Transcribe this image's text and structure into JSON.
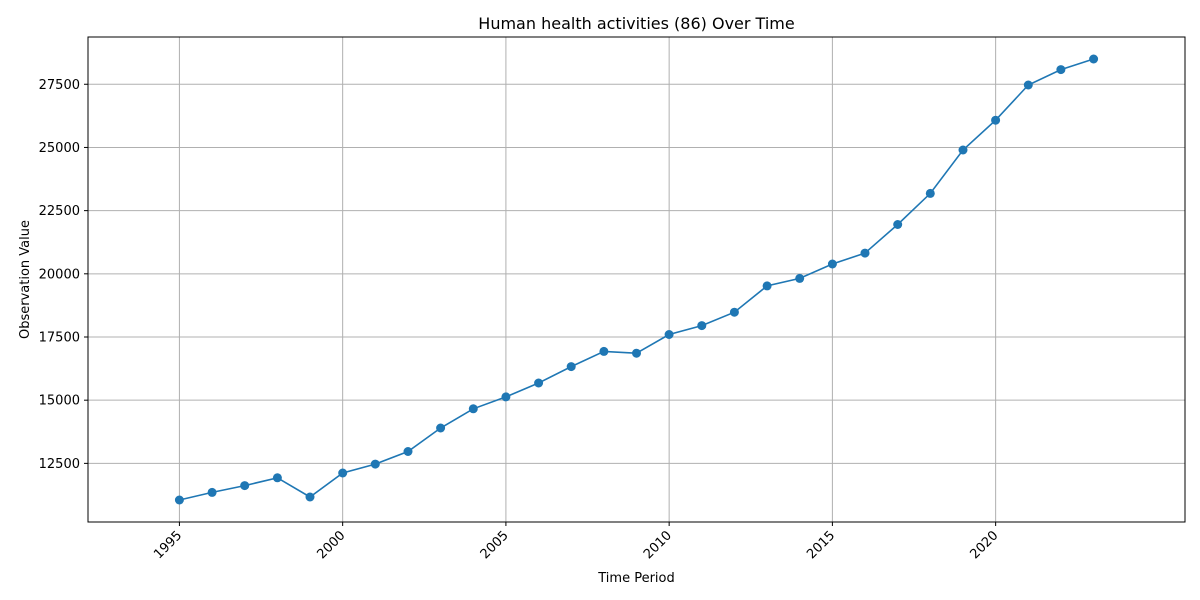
{
  "chart_data": {
    "type": "line",
    "title": "Human health activities (86) Over Time",
    "xlabel": "Time Period",
    "ylabel": "Observation Value",
    "x": [
      1995,
      1996,
      1997,
      1998,
      1999,
      2000,
      2001,
      2002,
      2003,
      2004,
      2005,
      2006,
      2007,
      2008,
      2009,
      2010,
      2011,
      2012,
      2013,
      2014,
      2015,
      2016,
      2017,
      2018,
      2019,
      2020,
      2021,
      2022,
      2023
    ],
    "series": [
      {
        "values": [
          11050,
          11350,
          11620,
          11930,
          11170,
          12120,
          12470,
          12970,
          13900,
          14660,
          15130,
          15680,
          16330,
          16930,
          16860,
          17600,
          17950,
          18480,
          19520,
          19820,
          20390,
          20820,
          21950,
          23180,
          24900,
          26080,
          27470,
          28080,
          28500
        ],
        "color": "#1f77b4",
        "marker": "circle"
      }
    ],
    "xlim": [
      1992.2,
      2025.8
    ],
    "ylim": [
      10180,
      29370
    ],
    "xticks": [
      "1995",
      "2000",
      "2005",
      "2010",
      "2015",
      "2020"
    ],
    "yticks": [
      "12500",
      "15000",
      "17500",
      "20000",
      "22500",
      "25000",
      "27500"
    ],
    "xtick_rotation": 45,
    "grid": true
  }
}
